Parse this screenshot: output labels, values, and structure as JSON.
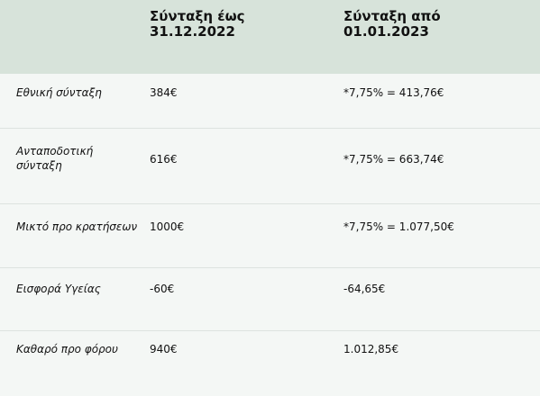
{
  "header": {
    "col1": "Σύνταξη έως 31.12.2022",
    "col2": "Σύνταξη από 01.01.2023"
  },
  "rows": [
    {
      "label": "Εθνική σύνταξη",
      "v1": "384€",
      "v2": "*7,75% = 413,76€"
    },
    {
      "label": "Ανταποδοτική σύνταξη",
      "v1": "616€",
      "v2": "*7,75% = 663,74€"
    },
    {
      "label": "Μικτό προ κρατήσεων",
      "v1": "1000€",
      "v2": "*7,75% = 1.077,50€"
    },
    {
      "label": "Εισφορά Υγείας",
      "v1": "-60€",
      "v2": "-64,65€"
    },
    {
      "label": "Καθαρό προ φόρου",
      "v1": "940€",
      "v2": "1.012,85€"
    }
  ]
}
